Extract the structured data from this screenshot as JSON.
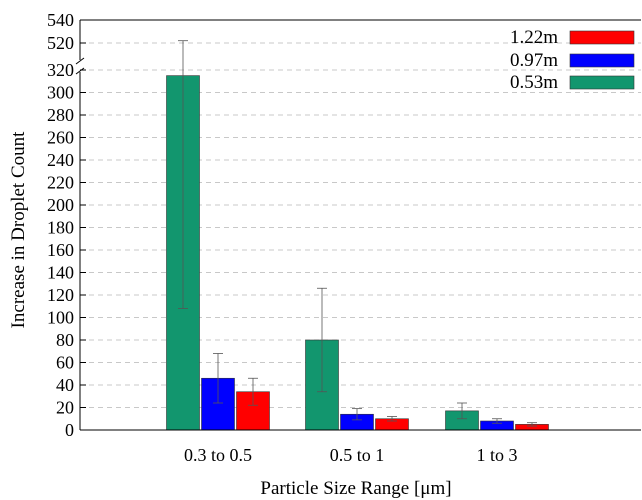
{
  "chart_data": {
    "type": "bar",
    "xlabel": "Particle Size Range [μm]",
    "ylabel": "Increase in Droplet Count",
    "categories": [
      "0.3 to 0.5",
      "0.5 to 1",
      "1 to 3"
    ],
    "series": [
      {
        "name": "0.53m",
        "color": "#12966e",
        "values": [
          315,
          80,
          17
        ],
        "errors": [
          207,
          46,
          7
        ]
      },
      {
        "name": "0.97m",
        "color": "#0000ff",
        "values": [
          46,
          14,
          8
        ],
        "errors": [
          22,
          5,
          2
        ]
      },
      {
        "name": "1.22m",
        "color": "#ff0000",
        "values": [
          34,
          10,
          5
        ],
        "errors": [
          12,
          2,
          1.5
        ]
      }
    ],
    "legend_order": [
      "1.22m",
      "0.97m",
      "0.53m"
    ],
    "legend_position": "top-right",
    "yaxis": {
      "broken": true,
      "lower_range": [
        0,
        320
      ],
      "upper_range": [
        500,
        540
      ],
      "lower_ticks": [
        0,
        20,
        40,
        60,
        80,
        100,
        120,
        140,
        160,
        180,
        200,
        220,
        240,
        260,
        280,
        300,
        320
      ],
      "upper_ticks": [
        520,
        540
      ]
    },
    "grid": true
  }
}
